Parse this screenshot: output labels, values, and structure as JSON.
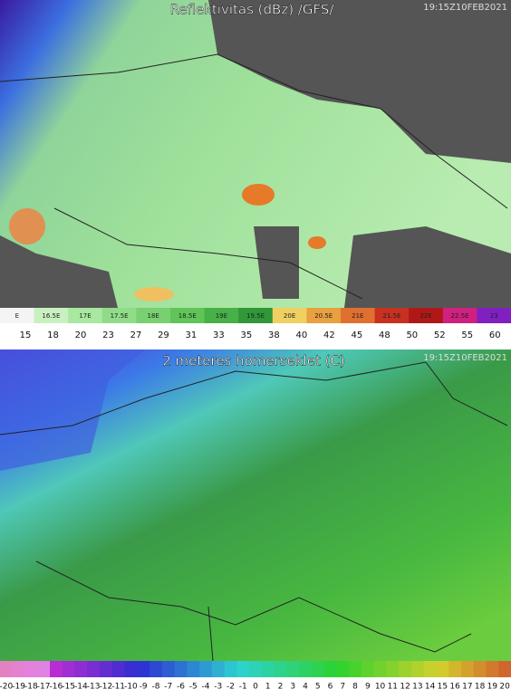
{
  "panels": [
    {
      "title": "Reflektivitas (dBz) /GFS/",
      "timestamp": "19:15Z10FEB2021",
      "colorbar_labels": [
        "E",
        "16.5E",
        "17E",
        "17.5E",
        "18E",
        "18.5E",
        "19E",
        "19.5E",
        "20E",
        "20.5E",
        "21E",
        "21.5E",
        "22E",
        "22.5E",
        "23"
      ],
      "scale": [
        15,
        18,
        20,
        23,
        27,
        29,
        31,
        33,
        35,
        38,
        40,
        42,
        45,
        48,
        50,
        52,
        55,
        60
      ]
    },
    {
      "title": "2 meteres homerseklet (C)",
      "timestamp": "19:15Z10FEB2021",
      "scale": [
        -20,
        -19,
        -18,
        -17,
        -16,
        -15,
        -14,
        -13,
        -12,
        -11,
        -10,
        -9,
        -8,
        -7,
        -6,
        -5,
        -4,
        -3,
        -2,
        -1,
        0,
        1,
        2,
        3,
        4,
        5,
        6,
        7,
        8,
        9,
        10,
        11,
        12,
        13,
        14,
        15,
        16,
        17,
        18,
        19,
        20
      ]
    }
  ]
}
